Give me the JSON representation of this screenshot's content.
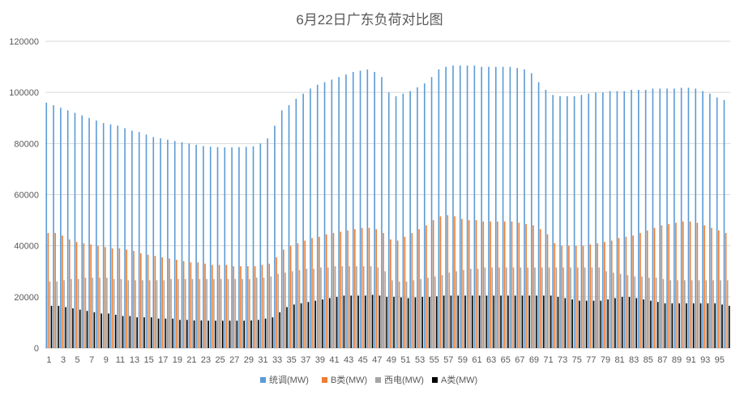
{
  "chart_data": {
    "type": "bar",
    "title": "6月22日广东负荷对比图",
    "xlabel": "",
    "ylabel": "",
    "ylim": [
      0,
      120000
    ],
    "yticks": [
      0,
      20000,
      40000,
      60000,
      80000,
      100000,
      120000
    ],
    "xtick_labels": [
      "1",
      "3",
      "5",
      "7",
      "9",
      "11",
      "13",
      "15",
      "17",
      "19",
      "21",
      "23",
      "25",
      "27",
      "29",
      "31",
      "33",
      "35",
      "37",
      "39",
      "41",
      "43",
      "45",
      "47",
      "49",
      "51",
      "53",
      "55",
      "57",
      "59",
      "61",
      "63",
      "65",
      "67",
      "69",
      "71",
      "73",
      "75",
      "77",
      "79",
      "81",
      "83",
      "85",
      "87",
      "89",
      "91",
      "93",
      "95"
    ],
    "grid": true,
    "legend_position": "bottom",
    "categories": [
      1,
      2,
      3,
      4,
      5,
      6,
      7,
      8,
      9,
      10,
      11,
      12,
      13,
      14,
      15,
      16,
      17,
      18,
      19,
      20,
      21,
      22,
      23,
      24,
      25,
      26,
      27,
      28,
      29,
      30,
      31,
      32,
      33,
      34,
      35,
      36,
      37,
      38,
      39,
      40,
      41,
      42,
      43,
      44,
      45,
      46,
      47,
      48,
      49,
      50,
      51,
      52,
      53,
      54,
      55,
      56,
      57,
      58,
      59,
      60,
      61,
      62,
      63,
      64,
      65,
      66,
      67,
      68,
      69,
      70,
      71,
      72,
      73,
      74,
      75,
      76,
      77,
      78,
      79,
      80,
      81,
      82,
      83,
      84,
      85,
      86,
      87,
      88,
      89,
      90,
      91,
      92,
      93,
      94,
      95,
      96
    ],
    "series": [
      {
        "name": "统调(MW)",
        "color": "#5b9bd5",
        "values": [
          96000,
          95000,
          94000,
          93000,
          92000,
          91000,
          90000,
          89000,
          88000,
          87500,
          87000,
          86000,
          85000,
          84500,
          83500,
          82500,
          82000,
          81500,
          81000,
          80500,
          80000,
          79500,
          79000,
          78800,
          78600,
          78500,
          78500,
          78600,
          78700,
          78900,
          80000,
          82000,
          87000,
          93000,
          95000,
          97500,
          99500,
          101500,
          103000,
          104000,
          105000,
          106000,
          107000,
          108000,
          108500,
          109000,
          108000,
          106000,
          100000,
          98500,
          99500,
          100500,
          102000,
          103500,
          106000,
          109000,
          110000,
          110500,
          110500,
          110500,
          110500,
          110000,
          110000,
          110000,
          110000,
          110000,
          109500,
          109000,
          107500,
          104000,
          101000,
          99000,
          98500,
          98500,
          98500,
          99000,
          99500,
          100000,
          100000,
          100500,
          100500,
          100500,
          101000,
          101000,
          101000,
          101500,
          101500,
          101500,
          101500,
          101800,
          101800,
          101500,
          100500,
          99500,
          98000,
          97000
        ]
      },
      {
        "name": "B类(MW)",
        "color": "#ed7d31",
        "values": [
          45000,
          45000,
          44000,
          42500,
          41500,
          41000,
          40500,
          40000,
          39500,
          39000,
          39000,
          38500,
          38000,
          37000,
          36500,
          36000,
          35500,
          35000,
          34500,
          34000,
          33500,
          33500,
          33000,
          32500,
          32500,
          32500,
          32000,
          32000,
          32000,
          32000,
          32500,
          33000,
          35500,
          38500,
          40000,
          41000,
          42000,
          43000,
          43500,
          44500,
          45000,
          45500,
          46000,
          46500,
          47000,
          47000,
          46500,
          45000,
          42500,
          42000,
          43500,
          45000,
          46500,
          48000,
          50000,
          51500,
          52000,
          51500,
          50500,
          50000,
          50000,
          49500,
          49500,
          49500,
          49500,
          49500,
          49000,
          48500,
          48000,
          46500,
          44500,
          41000,
          40000,
          40000,
          40000,
          40000,
          40500,
          41000,
          41500,
          42000,
          43000,
          43500,
          44000,
          45000,
          46000,
          47000,
          48000,
          48500,
          49000,
          49500,
          49500,
          49000,
          48000,
          47000,
          46000,
          45000
        ]
      },
      {
        "name": "西电(MW)",
        "color": "#a5a5a5",
        "values": [
          26000,
          26000,
          26500,
          27000,
          27000,
          27500,
          27500,
          27500,
          27500,
          27000,
          27000,
          26500,
          26500,
          26500,
          26500,
          26500,
          26500,
          27000,
          27000,
          27000,
          27000,
          27000,
          27000,
          27000,
          27000,
          27000,
          27000,
          27000,
          27000,
          27500,
          27500,
          28000,
          29000,
          29500,
          30000,
          30500,
          31000,
          31000,
          31500,
          31500,
          32000,
          32000,
          32000,
          32000,
          32000,
          32000,
          31500,
          30000,
          26500,
          26000,
          26000,
          26500,
          27000,
          27500,
          28000,
          28500,
          29500,
          30000,
          30500,
          31000,
          31000,
          31500,
          31500,
          31500,
          31500,
          31500,
          31500,
          31500,
          31500,
          31500,
          31500,
          31500,
          31500,
          31500,
          31500,
          31500,
          31500,
          31500,
          30000,
          29500,
          29000,
          28500,
          28000,
          28000,
          27500,
          27500,
          27000,
          26500,
          26500,
          26500,
          26500,
          26500,
          26500,
          26500,
          26500,
          26500
        ]
      },
      {
        "name": "A类(MW)",
        "color": "#000000",
        "values": [
          16500,
          16500,
          16000,
          15500,
          15000,
          14500,
          14000,
          13500,
          13500,
          13000,
          12500,
          12500,
          12000,
          12000,
          12000,
          11500,
          11500,
          11500,
          11000,
          11000,
          10800,
          10800,
          10700,
          10700,
          10700,
          10700,
          10700,
          10700,
          10800,
          11000,
          11500,
          12000,
          14000,
          16000,
          17000,
          17500,
          18000,
          18500,
          19000,
          19500,
          20000,
          20500,
          20500,
          20500,
          20500,
          20800,
          20500,
          20000,
          20000,
          19800,
          19500,
          19800,
          20000,
          20000,
          20200,
          20500,
          20500,
          20500,
          20500,
          20500,
          20500,
          20500,
          20500,
          20500,
          20500,
          20500,
          20500,
          20500,
          20500,
          20500,
          20500,
          20000,
          19500,
          19000,
          18500,
          18500,
          18500,
          18500,
          19000,
          19500,
          20000,
          20000,
          19500,
          19000,
          18500,
          18000,
          17500,
          17500,
          17500,
          17500,
          17500,
          17500,
          17500,
          17500,
          17000,
          16500
        ]
      }
    ]
  }
}
